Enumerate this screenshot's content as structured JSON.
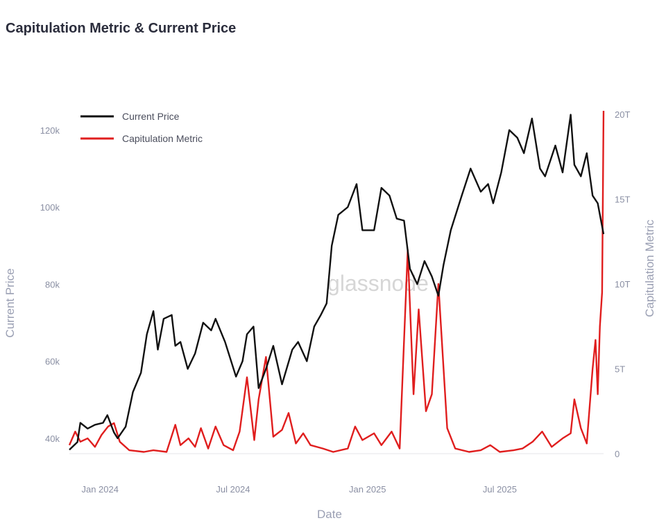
{
  "chart_data": {
    "type": "line",
    "title": "Capitulation Metric & Current Price",
    "xlabel": "Date",
    "ylabel_left": "Current Price",
    "ylabel_right": "Capitulation Metric",
    "watermark": "glassnode",
    "x_ticks": [
      "Jan 2024",
      "Jul 2024",
      "Jan 2025",
      "Jul 2025"
    ],
    "y_left_ticks": [
      "40k",
      "60k",
      "80k",
      "100k",
      "120k"
    ],
    "y_left_values": [
      40000,
      60000,
      80000,
      100000,
      120000
    ],
    "y_right_ticks": [
      "0",
      "5T",
      "10T",
      "15T",
      "20T"
    ],
    "y_right_values": [
      0,
      5,
      10,
      15,
      20
    ],
    "y_left_range": [
      36000,
      125000
    ],
    "y_right_range": [
      0,
      20.2
    ],
    "x_range": [
      "2023-11-20",
      "2025-11-20"
    ],
    "legend": [
      {
        "name": "Current Price",
        "color": "#111111"
      },
      {
        "name": "Capitulation Metric",
        "color": "#e01e1e"
      }
    ],
    "legend_position": "top-left",
    "grid": false,
    "series": [
      {
        "name": "Current Price",
        "axis": "left",
        "color": "#111111",
        "points": [
          [
            "2023-11-20",
            37000
          ],
          [
            "2023-12-01",
            39000
          ],
          [
            "2023-12-05",
            44000
          ],
          [
            "2023-12-15",
            42500
          ],
          [
            "2023-12-25",
            43500
          ],
          [
            "2024-01-05",
            44000
          ],
          [
            "2024-01-11",
            46000
          ],
          [
            "2024-01-20",
            41500
          ],
          [
            "2024-01-25",
            40000
          ],
          [
            "2024-02-05",
            43000
          ],
          [
            "2024-02-15",
            52000
          ],
          [
            "2024-02-26",
            57000
          ],
          [
            "2024-03-05",
            67000
          ],
          [
            "2024-03-14",
            73000
          ],
          [
            "2024-03-20",
            63000
          ],
          [
            "2024-03-28",
            71000
          ],
          [
            "2024-04-08",
            72000
          ],
          [
            "2024-04-13",
            64000
          ],
          [
            "2024-04-20",
            65000
          ],
          [
            "2024-04-30",
            58000
          ],
          [
            "2024-05-10",
            62000
          ],
          [
            "2024-05-21",
            70000
          ],
          [
            "2024-06-01",
            68000
          ],
          [
            "2024-06-07",
            71000
          ],
          [
            "2024-06-20",
            65000
          ],
          [
            "2024-07-05",
            56000
          ],
          [
            "2024-07-14",
            60000
          ],
          [
            "2024-07-20",
            67000
          ],
          [
            "2024-07-29",
            69000
          ],
          [
            "2024-08-05",
            53000
          ],
          [
            "2024-08-15",
            58000
          ],
          [
            "2024-08-25",
            64000
          ],
          [
            "2024-09-06",
            54000
          ],
          [
            "2024-09-20",
            63000
          ],
          [
            "2024-09-28",
            65000
          ],
          [
            "2024-10-10",
            60000
          ],
          [
            "2024-10-20",
            69000
          ],
          [
            "2024-10-29",
            72000
          ],
          [
            "2024-11-06",
            75000
          ],
          [
            "2024-11-13",
            90000
          ],
          [
            "2024-11-22",
            98000
          ],
          [
            "2024-12-05",
            100000
          ],
          [
            "2024-12-17",
            106000
          ],
          [
            "2024-12-25",
            94000
          ],
          [
            "2025-01-10",
            94000
          ],
          [
            "2025-01-20",
            105000
          ],
          [
            "2025-01-31",
            103000
          ],
          [
            "2025-02-10",
            97000
          ],
          [
            "2025-02-20",
            96500
          ],
          [
            "2025-02-28",
            84000
          ],
          [
            "2025-03-10",
            80000
          ],
          [
            "2025-03-20",
            86000
          ],
          [
            "2025-03-30",
            82000
          ],
          [
            "2025-04-08",
            77000
          ],
          [
            "2025-04-15",
            85000
          ],
          [
            "2025-04-25",
            94000
          ],
          [
            "2025-05-10",
            103000
          ],
          [
            "2025-05-22",
            110000
          ],
          [
            "2025-06-05",
            104000
          ],
          [
            "2025-06-15",
            106000
          ],
          [
            "2025-06-22",
            101000
          ],
          [
            "2025-07-03",
            109000
          ],
          [
            "2025-07-14",
            120000
          ],
          [
            "2025-07-25",
            118000
          ],
          [
            "2025-08-03",
            114000
          ],
          [
            "2025-08-14",
            123000
          ],
          [
            "2025-08-25",
            110000
          ],
          [
            "2025-09-01",
            108000
          ],
          [
            "2025-09-15",
            116000
          ],
          [
            "2025-09-25",
            109000
          ],
          [
            "2025-10-06",
            124000
          ],
          [
            "2025-10-11",
            111000
          ],
          [
            "2025-10-20",
            108000
          ],
          [
            "2025-10-28",
            114000
          ],
          [
            "2025-11-05",
            103000
          ],
          [
            "2025-11-12",
            101000
          ],
          [
            "2025-11-20",
            93000
          ]
        ]
      },
      {
        "name": "Capitulation Metric",
        "axis": "right",
        "color": "#e01e1e",
        "points": [
          [
            "2023-11-20",
            0.5
          ],
          [
            "2023-11-28",
            1.3
          ],
          [
            "2023-12-05",
            0.7
          ],
          [
            "2023-12-15",
            0.9
          ],
          [
            "2023-12-25",
            0.4
          ],
          [
            "2024-01-03",
            1.1
          ],
          [
            "2024-01-12",
            1.6
          ],
          [
            "2024-01-20",
            1.8
          ],
          [
            "2024-01-28",
            0.7
          ],
          [
            "2024-02-10",
            0.2
          ],
          [
            "2024-03-01",
            0.1
          ],
          [
            "2024-03-14",
            0.2
          ],
          [
            "2024-04-01",
            0.1
          ],
          [
            "2024-04-13",
            1.7
          ],
          [
            "2024-04-20",
            0.5
          ],
          [
            "2024-05-01",
            0.9
          ],
          [
            "2024-05-10",
            0.4
          ],
          [
            "2024-05-18",
            1.5
          ],
          [
            "2024-05-28",
            0.3
          ],
          [
            "2024-06-07",
            1.6
          ],
          [
            "2024-06-18",
            0.5
          ],
          [
            "2024-07-01",
            0.2
          ],
          [
            "2024-07-10",
            1.3
          ],
          [
            "2024-07-20",
            4.5
          ],
          [
            "2024-07-30",
            0.8
          ],
          [
            "2024-08-05",
            3.2
          ],
          [
            "2024-08-15",
            5.7
          ],
          [
            "2024-08-25",
            1.0
          ],
          [
            "2024-09-06",
            1.4
          ],
          [
            "2024-09-15",
            2.4
          ],
          [
            "2024-09-25",
            0.6
          ],
          [
            "2024-10-05",
            1.2
          ],
          [
            "2024-10-15",
            0.5
          ],
          [
            "2024-11-01",
            0.3
          ],
          [
            "2024-11-15",
            0.1
          ],
          [
            "2024-12-05",
            0.3
          ],
          [
            "2024-12-15",
            1.6
          ],
          [
            "2024-12-25",
            0.8
          ],
          [
            "2025-01-10",
            1.2
          ],
          [
            "2025-01-20",
            0.5
          ],
          [
            "2025-02-03",
            1.3
          ],
          [
            "2025-02-14",
            0.3
          ],
          [
            "2025-02-25",
            12.0
          ],
          [
            "2025-03-05",
            3.5
          ],
          [
            "2025-03-12",
            8.5
          ],
          [
            "2025-03-22",
            2.5
          ],
          [
            "2025-03-30",
            3.5
          ],
          [
            "2025-04-08",
            10.0
          ],
          [
            "2025-04-20",
            1.5
          ],
          [
            "2025-05-01",
            0.3
          ],
          [
            "2025-05-20",
            0.1
          ],
          [
            "2025-06-05",
            0.2
          ],
          [
            "2025-06-18",
            0.5
          ],
          [
            "2025-07-01",
            0.1
          ],
          [
            "2025-07-20",
            0.2
          ],
          [
            "2025-08-01",
            0.3
          ],
          [
            "2025-08-15",
            0.7
          ],
          [
            "2025-08-28",
            1.3
          ],
          [
            "2025-09-10",
            0.4
          ],
          [
            "2025-09-25",
            0.9
          ],
          [
            "2025-10-06",
            1.2
          ],
          [
            "2025-10-11",
            3.2
          ],
          [
            "2025-10-20",
            1.5
          ],
          [
            "2025-10-28",
            0.6
          ],
          [
            "2025-11-05",
            5.0
          ],
          [
            "2025-11-09",
            6.7
          ],
          [
            "2025-11-12",
            3.5
          ],
          [
            "2025-11-15",
            7.5
          ],
          [
            "2025-11-18",
            9.5
          ],
          [
            "2025-11-20",
            20.2
          ]
        ]
      }
    ]
  }
}
